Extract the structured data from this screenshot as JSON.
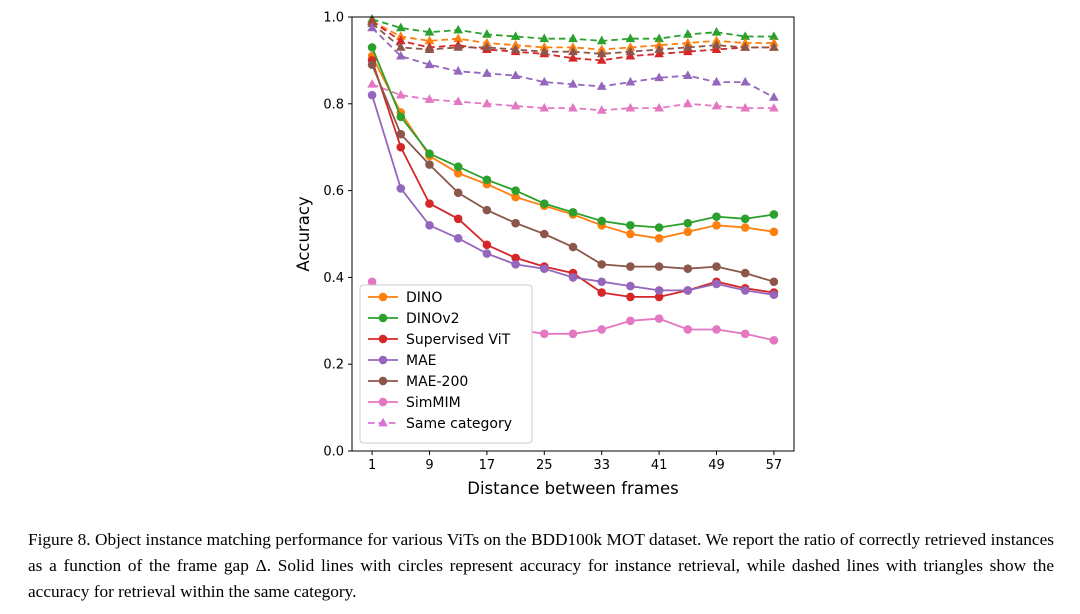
{
  "figure": {
    "caption": "Figure 8. Object instance matching performance for various ViTs on the BDD100k MOT dataset. We report the ratio of correctly retrieved instances as a function of the frame gap Δ. Solid lines with circles represent accuracy for instance retrieval, while dashed lines with triangles show the accuracy for retrieval within the same category."
  },
  "chart_data": {
    "type": "line",
    "title": "",
    "xlabel": "Distance between frames",
    "ylabel": "Accuracy",
    "x": [
      1,
      5,
      9,
      13,
      17,
      21,
      25,
      29,
      33,
      37,
      41,
      45,
      49,
      53,
      57
    ],
    "xticks": [
      1,
      9,
      17,
      25,
      33,
      41,
      49,
      57
    ],
    "yticks": [
      0.0,
      0.2,
      0.4,
      0.6,
      0.8,
      1.0
    ],
    "xlim": [
      -1.8,
      59.8
    ],
    "ylim": [
      0.0,
      1.0
    ],
    "grid": false,
    "legend_position": "lower left",
    "colors": {
      "DINO": "#ff7f0e",
      "DINOv2": "#2ca02c",
      "Supervised ViT": "#d62728",
      "MAE": "#9467bd",
      "MAE-200": "#8c564b",
      "SimMIM": "#e377c2",
      "Same category": "#da70d6"
    },
    "series": [
      {
        "name": "DINOv2 same category",
        "color": "#2ca02c",
        "style": "dashed",
        "marker": "triangle",
        "values": [
          0.995,
          0.975,
          0.965,
          0.97,
          0.96,
          0.955,
          0.95,
          0.95,
          0.945,
          0.95,
          0.95,
          0.96,
          0.965,
          0.955,
          0.955
        ]
      },
      {
        "name": "DINO same category",
        "color": "#ff7f0e",
        "style": "dashed",
        "marker": "triangle",
        "values": [
          0.99,
          0.955,
          0.945,
          0.95,
          0.94,
          0.935,
          0.93,
          0.93,
          0.925,
          0.93,
          0.935,
          0.94,
          0.945,
          0.94,
          0.94
        ]
      },
      {
        "name": "Supervised ViT same category",
        "color": "#d62728",
        "style": "dashed",
        "marker": "triangle",
        "values": [
          0.99,
          0.945,
          0.93,
          0.935,
          0.925,
          0.92,
          0.915,
          0.905,
          0.9,
          0.91,
          0.915,
          0.92,
          0.925,
          0.93,
          0.93
        ]
      },
      {
        "name": "MAE-200 same category",
        "color": "#8c564b",
        "style": "dashed",
        "marker": "triangle",
        "values": [
          0.985,
          0.93,
          0.925,
          0.93,
          0.93,
          0.925,
          0.92,
          0.92,
          0.915,
          0.92,
          0.925,
          0.93,
          0.935,
          0.93,
          0.93
        ]
      },
      {
        "name": "MAE same category",
        "color": "#9467bd",
        "style": "dashed",
        "marker": "triangle",
        "values": [
          0.975,
          0.91,
          0.89,
          0.875,
          0.87,
          0.865,
          0.85,
          0.845,
          0.84,
          0.85,
          0.86,
          0.865,
          0.85,
          0.85,
          0.815
        ]
      },
      {
        "name": "SimMIM same category",
        "color": "#e377c2",
        "style": "dashed",
        "marker": "triangle",
        "values": [
          0.845,
          0.82,
          0.81,
          0.805,
          0.8,
          0.795,
          0.79,
          0.79,
          0.785,
          0.79,
          0.79,
          0.8,
          0.795,
          0.79,
          0.79
        ]
      },
      {
        "name": "DINO",
        "color": "#ff7f0e",
        "style": "solid",
        "marker": "circle",
        "values": [
          0.91,
          0.78,
          0.68,
          0.64,
          0.615,
          0.585,
          0.565,
          0.545,
          0.52,
          0.5,
          0.49,
          0.505,
          0.52,
          0.515,
          0.505
        ]
      },
      {
        "name": "DINOv2",
        "color": "#2ca02c",
        "style": "solid",
        "marker": "circle",
        "values": [
          0.93,
          0.77,
          0.685,
          0.655,
          0.625,
          0.6,
          0.57,
          0.55,
          0.53,
          0.52,
          0.515,
          0.525,
          0.54,
          0.535,
          0.545
        ]
      },
      {
        "name": "Supervised ViT",
        "color": "#d62728",
        "style": "solid",
        "marker": "circle",
        "values": [
          0.9,
          0.7,
          0.57,
          0.535,
          0.475,
          0.445,
          0.425,
          0.41,
          0.365,
          0.355,
          0.355,
          0.37,
          0.39,
          0.375,
          0.365
        ]
      },
      {
        "name": "MAE",
        "color": "#9467bd",
        "style": "solid",
        "marker": "circle",
        "values": [
          0.82,
          0.605,
          0.52,
          0.49,
          0.455,
          0.43,
          0.42,
          0.4,
          0.39,
          0.38,
          0.37,
          0.37,
          0.385,
          0.37,
          0.36
        ]
      },
      {
        "name": "MAE-200",
        "color": "#8c564b",
        "style": "solid",
        "marker": "circle",
        "values": [
          0.89,
          0.73,
          0.66,
          0.595,
          0.555,
          0.525,
          0.5,
          0.47,
          0.43,
          0.425,
          0.425,
          0.42,
          0.425,
          0.41,
          0.39
        ]
      },
      {
        "name": "SimMIM",
        "color": "#e377c2",
        "style": "solid",
        "marker": "circle",
        "values": [
          0.39,
          0.33,
          0.315,
          0.3,
          0.285,
          0.28,
          0.27,
          0.27,
          0.28,
          0.3,
          0.305,
          0.28,
          0.28,
          0.27,
          0.255
        ]
      }
    ],
    "legend": [
      {
        "label": "DINO",
        "color": "#ff7f0e",
        "style": "solid",
        "marker": "circle"
      },
      {
        "label": "DINOv2",
        "color": "#2ca02c",
        "style": "solid",
        "marker": "circle"
      },
      {
        "label": "Supervised ViT",
        "color": "#d62728",
        "style": "solid",
        "marker": "circle"
      },
      {
        "label": "MAE",
        "color": "#9467bd",
        "style": "solid",
        "marker": "circle"
      },
      {
        "label": "MAE-200",
        "color": "#8c564b",
        "style": "solid",
        "marker": "circle"
      },
      {
        "label": "SimMIM",
        "color": "#e377c2",
        "style": "solid",
        "marker": "circle"
      },
      {
        "label": "Same category",
        "color": "#da70d6",
        "style": "dashed",
        "marker": "triangle"
      }
    ]
  }
}
